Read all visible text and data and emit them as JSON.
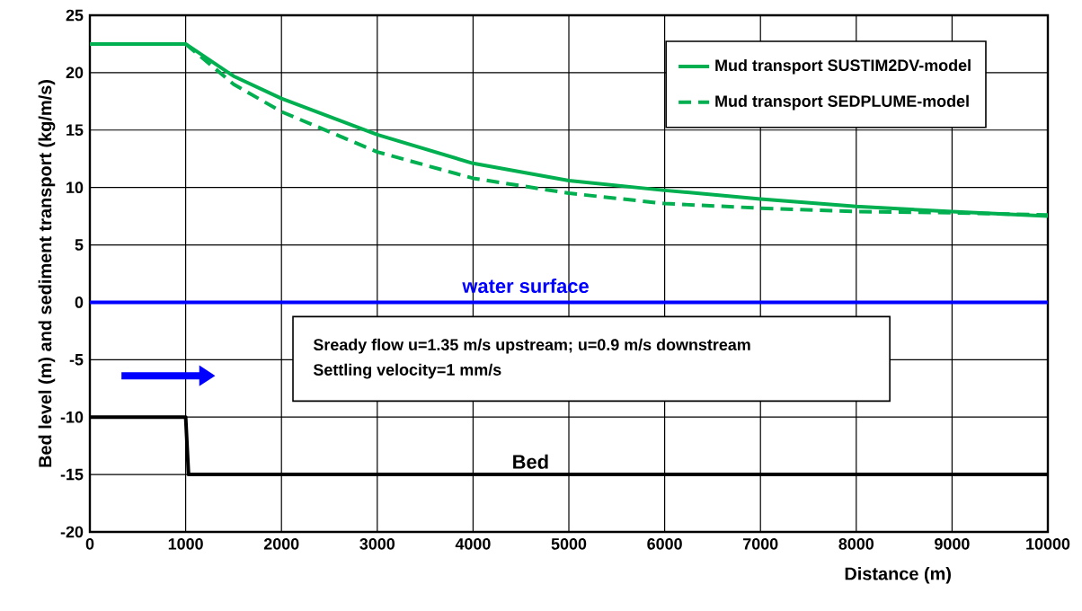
{
  "chart_data": {
    "type": "line",
    "xlabel": "Distance (m)",
    "ylabel": "Bed level (m) and sediment transport  (kg/m/s)",
    "xlim": [
      0,
      10000
    ],
    "xticks": [
      0,
      1000,
      2000,
      3000,
      4000,
      5000,
      6000,
      7000,
      8000,
      9000,
      10000
    ],
    "ylim": [
      -20,
      25
    ],
    "yticks": [
      -20,
      -15,
      -10,
      -5,
      0,
      5,
      10,
      15,
      20,
      25
    ],
    "grid": true,
    "legend": "top right",
    "series": [
      {
        "name": "Mud transport SUSTIM2DV-model",
        "color": "#00b050",
        "line_style": "solid",
        "x": [
          0,
          1000,
          1500,
          2000,
          3000,
          4000,
          5000,
          6000,
          7000,
          8000,
          9000,
          10000
        ],
        "values": [
          22.5,
          22.5,
          19.7,
          17.75,
          14.6,
          12.1,
          10.6,
          9.75,
          9.0,
          8.35,
          7.9,
          7.5
        ]
      },
      {
        "name": "Mud transport SEDPLUME-model",
        "color": "#00b050",
        "line_style": "dashed",
        "x": [
          1000,
          1500,
          2000,
          3000,
          4000,
          5000,
          6000,
          7000,
          8000,
          9000,
          10000
        ],
        "values": [
          22.5,
          19.0,
          16.6,
          13.1,
          10.8,
          9.5,
          8.6,
          8.2,
          7.9,
          7.8,
          7.6
        ]
      },
      {
        "color": "#000000",
        "line_style": "solid",
        "x": [
          0,
          1000,
          1030,
          10000
        ],
        "values": [
          -10,
          -10,
          -15,
          -15
        ]
      }
    ],
    "ref_lines": [
      {
        "axis": "y",
        "value": 0,
        "label": "water surface",
        "color": "#0000ff"
      }
    ],
    "annotations": [
      {
        "text": "Bed",
        "x": 4600,
        "y": -15
      },
      "Sready flow u=1.35 m/s upstream; u=0.9 m/s downstream",
      "Settling velocity=1 mm/s"
    ]
  }
}
